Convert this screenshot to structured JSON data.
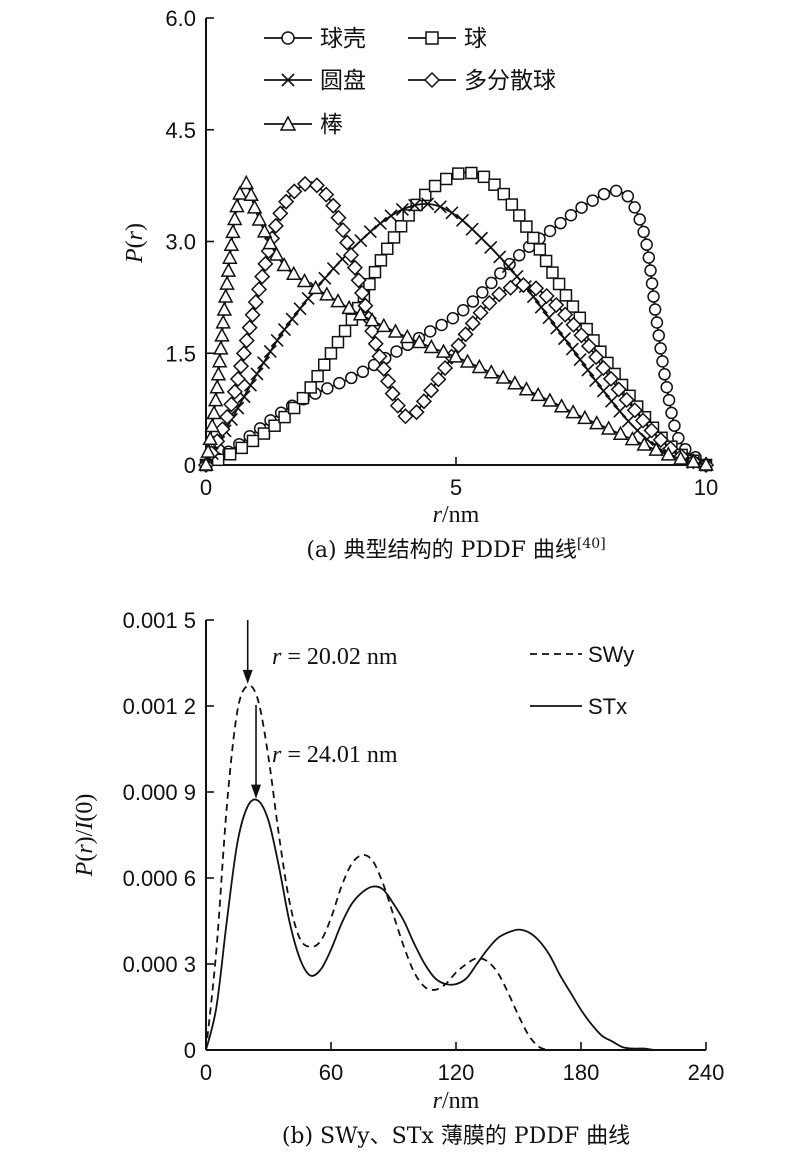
{
  "chart_data": [
    {
      "type": "line",
      "caption": "(a) 典型结构的 PDDF 曲线",
      "caption_ref": "[40]",
      "xlabel_italic": "r",
      "xlabel_unit": "/nm",
      "ylabel": "P(r)",
      "xlim": [
        0,
        10
      ],
      "ylim": [
        0,
        6.0
      ],
      "xticks": [
        0,
        5,
        10
      ],
      "xtick_labels": [
        "0",
        "5",
        "10"
      ],
      "yticks": [
        0,
        1.5,
        3.0,
        4.5,
        6.0
      ],
      "ytick_labels": [
        "0",
        "1.5",
        "3.0",
        "4.5",
        "6.0"
      ],
      "grid": false,
      "legend_position": "top-left",
      "series": [
        {
          "name": "球壳",
          "marker": "circle",
          "marker_every": 1,
          "x": [
            0,
            0.5,
            1,
            1.5,
            2,
            2.5,
            3,
            3.5,
            4,
            4.5,
            5,
            5.5,
            6,
            6.5,
            7,
            7.5,
            8,
            8.2,
            8.5,
            8.8,
            9,
            9.2,
            9.4,
            9.6,
            9.8,
            10
          ],
          "y": [
            0,
            0.2,
            0.45,
            0.7,
            0.9,
            1.05,
            1.2,
            1.4,
            1.6,
            1.8,
            2.0,
            2.3,
            2.65,
            2.95,
            3.2,
            3.45,
            3.65,
            3.68,
            3.55,
            3.0,
            2.0,
            1.1,
            0.45,
            0.2,
            0.1,
            0
          ]
        },
        {
          "name": "球",
          "marker": "square",
          "marker_every": 1,
          "x": [
            0,
            0.5,
            1,
            1.5,
            2,
            2.5,
            3,
            3.5,
            4,
            4.5,
            5,
            5.3,
            5.6,
            6,
            6.5,
            7,
            7.5,
            8,
            8.5,
            9,
            9.3,
            9.6,
            10
          ],
          "y": [
            0,
            0.15,
            0.35,
            0.6,
            0.95,
            1.5,
            2.05,
            2.75,
            3.3,
            3.7,
            3.9,
            3.92,
            3.85,
            3.6,
            3.1,
            2.5,
            1.95,
            1.4,
            0.9,
            0.45,
            0.25,
            0.1,
            0
          ]
        },
        {
          "name": "圆盘",
          "marker": "cross",
          "marker_every": 1,
          "x": [
            0,
            0.5,
            1,
            1.5,
            2,
            2.5,
            3,
            3.5,
            4,
            4.5,
            5,
            5.5,
            6,
            6.5,
            7,
            7.5,
            8,
            8.5,
            9,
            9.5,
            10
          ],
          "y": [
            0,
            0.6,
            1.2,
            1.75,
            2.2,
            2.6,
            2.95,
            3.25,
            3.45,
            3.5,
            3.35,
            3.05,
            2.7,
            2.3,
            1.85,
            1.4,
            0.95,
            0.55,
            0.25,
            0.08,
            0
          ]
        },
        {
          "name": "多分散球",
          "marker": "diamond",
          "marker_every": 1,
          "x": [
            0,
            0.5,
            1,
            1.5,
            2,
            2.3,
            2.6,
            3,
            3.5,
            4,
            4.5,
            5,
            5.5,
            6,
            6.5,
            7,
            7.5,
            8,
            8.5,
            9,
            9.5,
            10
          ],
          "y": [
            0,
            0.8,
            2.2,
            3.4,
            3.78,
            3.7,
            3.4,
            2.6,
            1.4,
            0.65,
            1.0,
            1.55,
            2.05,
            2.35,
            2.4,
            2.15,
            1.75,
            1.25,
            0.8,
            0.4,
            0.12,
            0
          ]
        },
        {
          "name": "棒",
          "marker": "triangle",
          "marker_every": 1,
          "x": [
            0,
            0.2,
            0.4,
            0.6,
            0.8,
            1,
            1.3,
            1.6,
            2,
            2.5,
            3,
            3.5,
            4,
            4.5,
            5,
            5.5,
            6,
            6.5,
            7,
            7.5,
            8,
            8.5,
            9,
            9.5,
            10
          ],
          "y": [
            0,
            0.9,
            2.3,
            3.4,
            3.78,
            3.4,
            2.95,
            2.65,
            2.45,
            2.25,
            2.05,
            1.88,
            1.72,
            1.58,
            1.45,
            1.3,
            1.15,
            0.98,
            0.82,
            0.65,
            0.5,
            0.35,
            0.2,
            0.08,
            0
          ]
        }
      ]
    },
    {
      "type": "line",
      "caption": "(b) SWy、STx 薄膜的 PDDF 曲线",
      "xlabel_italic": "r",
      "xlabel_unit": "/nm",
      "ylabel": "P(r)/I(0)",
      "xlim": [
        0,
        240
      ],
      "ylim": [
        0,
        0.0015
      ],
      "xticks": [
        0,
        60,
        120,
        180,
        240
      ],
      "xtick_labels": [
        "0",
        "60",
        "120",
        "180",
        "240"
      ],
      "yticks": [
        0,
        0.0003,
        0.0006,
        0.0009,
        0.0012,
        0.0015
      ],
      "ytick_labels": [
        "0",
        "0.000 3",
        "0.000 6",
        "0.000 9",
        "0.001 2",
        "0.001 5"
      ],
      "grid": false,
      "legend_position": "top-right",
      "annotations": [
        {
          "text_prefix": "r",
          "text": " = 20.02 nm",
          "x": 20.02,
          "y": 0.00127
        },
        {
          "text_prefix": "r",
          "text": " = 24.01 nm",
          "x": 24.01,
          "y": 0.00087
        }
      ],
      "series": [
        {
          "name": "SWy",
          "dash": "dashed",
          "x": [
            0,
            5,
            10,
            15,
            20,
            25,
            30,
            35,
            40,
            45,
            50,
            55,
            60,
            65,
            70,
            75,
            80,
            85,
            90,
            95,
            100,
            105,
            110,
            115,
            120,
            125,
            130,
            135,
            140,
            145,
            150,
            155,
            160,
            165
          ],
          "y": [
            0,
            0.00035,
            0.00085,
            0.00118,
            0.00127,
            0.00122,
            0.00102,
            0.00075,
            0.00052,
            0.00039,
            0.00036,
            0.00038,
            0.00046,
            0.00057,
            0.00065,
            0.00068,
            0.00066,
            0.00058,
            0.00047,
            0.00036,
            0.00027,
            0.00022,
            0.00021,
            0.00023,
            0.00027,
            0.0003,
            0.00032,
            0.00031,
            0.00027,
            0.0002,
            0.00012,
            5e-05,
            1e-05,
            0
          ]
        },
        {
          "name": "STx",
          "dash": "solid",
          "x": [
            0,
            5,
            10,
            15,
            20,
            25,
            30,
            35,
            40,
            45,
            50,
            55,
            60,
            65,
            70,
            75,
            80,
            85,
            90,
            95,
            100,
            105,
            110,
            115,
            120,
            125,
            130,
            135,
            140,
            145,
            150,
            155,
            160,
            165,
            170,
            175,
            180,
            185,
            190,
            195,
            200,
            205,
            210,
            215
          ],
          "y": [
            0,
            0.00015,
            0.00045,
            0.00072,
            0.00085,
            0.00087,
            0.0008,
            0.00064,
            0.00045,
            0.00032,
            0.00026,
            0.00028,
            0.00035,
            0.00044,
            0.00051,
            0.00055,
            0.00057,
            0.00056,
            0.00051,
            0.00045,
            0.00037,
            0.0003,
            0.00025,
            0.00023,
            0.00023,
            0.00025,
            0.0003,
            0.00035,
            0.00039,
            0.00041,
            0.00042,
            0.00041,
            0.00038,
            0.00033,
            0.00026,
            0.0002,
            0.00014,
            9e-05,
            5e-05,
            3e-05,
            1e-05,
            5e-06,
            5e-06,
            0
          ]
        }
      ]
    }
  ]
}
